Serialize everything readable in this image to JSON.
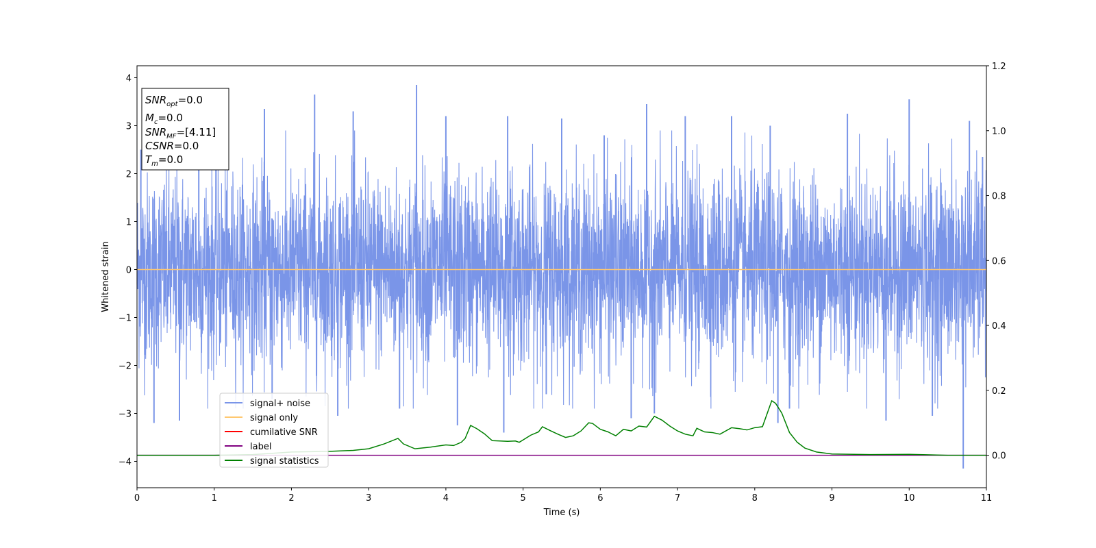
{
  "chart_data": {
    "type": "line",
    "title": "",
    "xlabel": "Time (s)",
    "ylabel": "Whitened strain",
    "y2label": "",
    "xlim": [
      0,
      11
    ],
    "ylim": [
      -4.55,
      4.25
    ],
    "y2lim": [
      -0.1,
      1.2
    ],
    "xticks": [
      "0",
      "1",
      "2",
      "3",
      "4",
      "5",
      "6",
      "7",
      "8",
      "9",
      "10",
      "11"
    ],
    "yticks": [
      "4",
      "3",
      "2",
      "1",
      "0",
      "−1",
      "−2",
      "−3",
      "−4"
    ],
    "y2ticks": [
      "1.2",
      "1.0",
      "0.8",
      "0.6",
      "0.4",
      "0.2",
      "0.0"
    ],
    "grid": false,
    "legend_position": "lower-left",
    "infobox": {
      "snr_opt": {
        "base": "SNR",
        "sub": "opt",
        "value": "=0.0"
      },
      "mc": {
        "base": "M",
        "sub": "c",
        "value": "=0.0"
      },
      "snr_mf": {
        "base": "SNR",
        "sub": "MF",
        "value": "=[4.11]"
      },
      "csnr": {
        "base": "CSNR",
        "sub": "",
        "value": "=0.0"
      },
      "tm": {
        "base": "T",
        "sub": "m",
        "value": "=0.0"
      }
    },
    "series": [
      {
        "name": "signal+ noise",
        "color": "#7a95e8",
        "axis": "left",
        "description_std": 1.0,
        "envelope_peaks": [
          [
            0.05,
            2.5
          ],
          [
            0.22,
            -3.2
          ],
          [
            0.55,
            -3.15
          ],
          [
            0.8,
            2.4
          ],
          [
            1.65,
            3.35
          ],
          [
            1.75,
            -2.7
          ],
          [
            2.3,
            3.65
          ],
          [
            2.6,
            -3.05
          ],
          [
            2.8,
            3.3
          ],
          [
            3.4,
            -2.9
          ],
          [
            3.62,
            3.85
          ],
          [
            4.0,
            3.2
          ],
          [
            4.15,
            -3.25
          ],
          [
            4.75,
            -3.4
          ],
          [
            4.8,
            3.2
          ],
          [
            5.3,
            -2.6
          ],
          [
            5.5,
            3.15
          ],
          [
            6.05,
            2.8
          ],
          [
            6.4,
            -3.1
          ],
          [
            6.6,
            3.45
          ],
          [
            6.7,
            -3.0
          ],
          [
            7.1,
            3.2
          ],
          [
            7.7,
            3.2
          ],
          [
            8.2,
            3.0
          ],
          [
            8.3,
            -3.2
          ],
          [
            8.45,
            -2.9
          ],
          [
            9.2,
            3.25
          ],
          [
            9.7,
            -3.15
          ],
          [
            10.0,
            3.55
          ],
          [
            10.3,
            -3.05
          ],
          [
            10.7,
            -4.15
          ],
          [
            10.78,
            3.1
          ],
          [
            10.95,
            2.35
          ]
        ]
      },
      {
        "name": "signal only",
        "color": "#ffc870",
        "axis": "left",
        "x": [
          0,
          11
        ],
        "y": [
          0,
          0
        ]
      },
      {
        "name": "cumilative SNR",
        "color": "#ff0000",
        "axis": "right",
        "x": [],
        "y": []
      },
      {
        "name": "label",
        "color": "#800080",
        "axis": "right",
        "x": [
          0,
          11
        ],
        "y": [
          0,
          0
        ]
      },
      {
        "name": "signal statistics",
        "color": "#008000",
        "axis": "right",
        "x": [
          0,
          0.5,
          1.0,
          1.5,
          2.0,
          2.5,
          2.8,
          3.0,
          3.2,
          3.38,
          3.45,
          3.6,
          3.8,
          4.0,
          4.1,
          4.2,
          4.25,
          4.32,
          4.4,
          4.5,
          4.6,
          4.7,
          4.8,
          4.9,
          4.95,
          5.1,
          5.2,
          5.25,
          5.35,
          5.45,
          5.55,
          5.65,
          5.75,
          5.85,
          5.9,
          6.0,
          6.1,
          6.2,
          6.3,
          6.4,
          6.5,
          6.6,
          6.7,
          6.8,
          6.9,
          7.0,
          7.1,
          7.2,
          7.25,
          7.35,
          7.45,
          7.55,
          7.7,
          7.8,
          7.9,
          8.0,
          8.1,
          8.22,
          8.27,
          8.35,
          8.45,
          8.55,
          8.65,
          8.8,
          9.0,
          9.5,
          10.0,
          10.5,
          11.0
        ],
        "y": [
          0.0,
          0.0,
          0.0,
          0.002,
          0.01,
          0.012,
          0.015,
          0.02,
          0.035,
          0.052,
          0.035,
          0.02,
          0.025,
          0.032,
          0.03,
          0.04,
          0.052,
          0.092,
          0.082,
          0.066,
          0.045,
          0.044,
          0.043,
          0.044,
          0.04,
          0.062,
          0.072,
          0.088,
          0.076,
          0.065,
          0.055,
          0.06,
          0.075,
          0.1,
          0.098,
          0.08,
          0.072,
          0.06,
          0.08,
          0.075,
          0.09,
          0.087,
          0.12,
          0.108,
          0.09,
          0.075,
          0.065,
          0.06,
          0.083,
          0.072,
          0.07,
          0.065,
          0.085,
          0.082,
          0.078,
          0.085,
          0.088,
          0.168,
          0.16,
          0.13,
          0.07,
          0.04,
          0.022,
          0.01,
          0.004,
          0.002,
          0.003,
          0.0,
          0.0
        ]
      }
    ]
  }
}
